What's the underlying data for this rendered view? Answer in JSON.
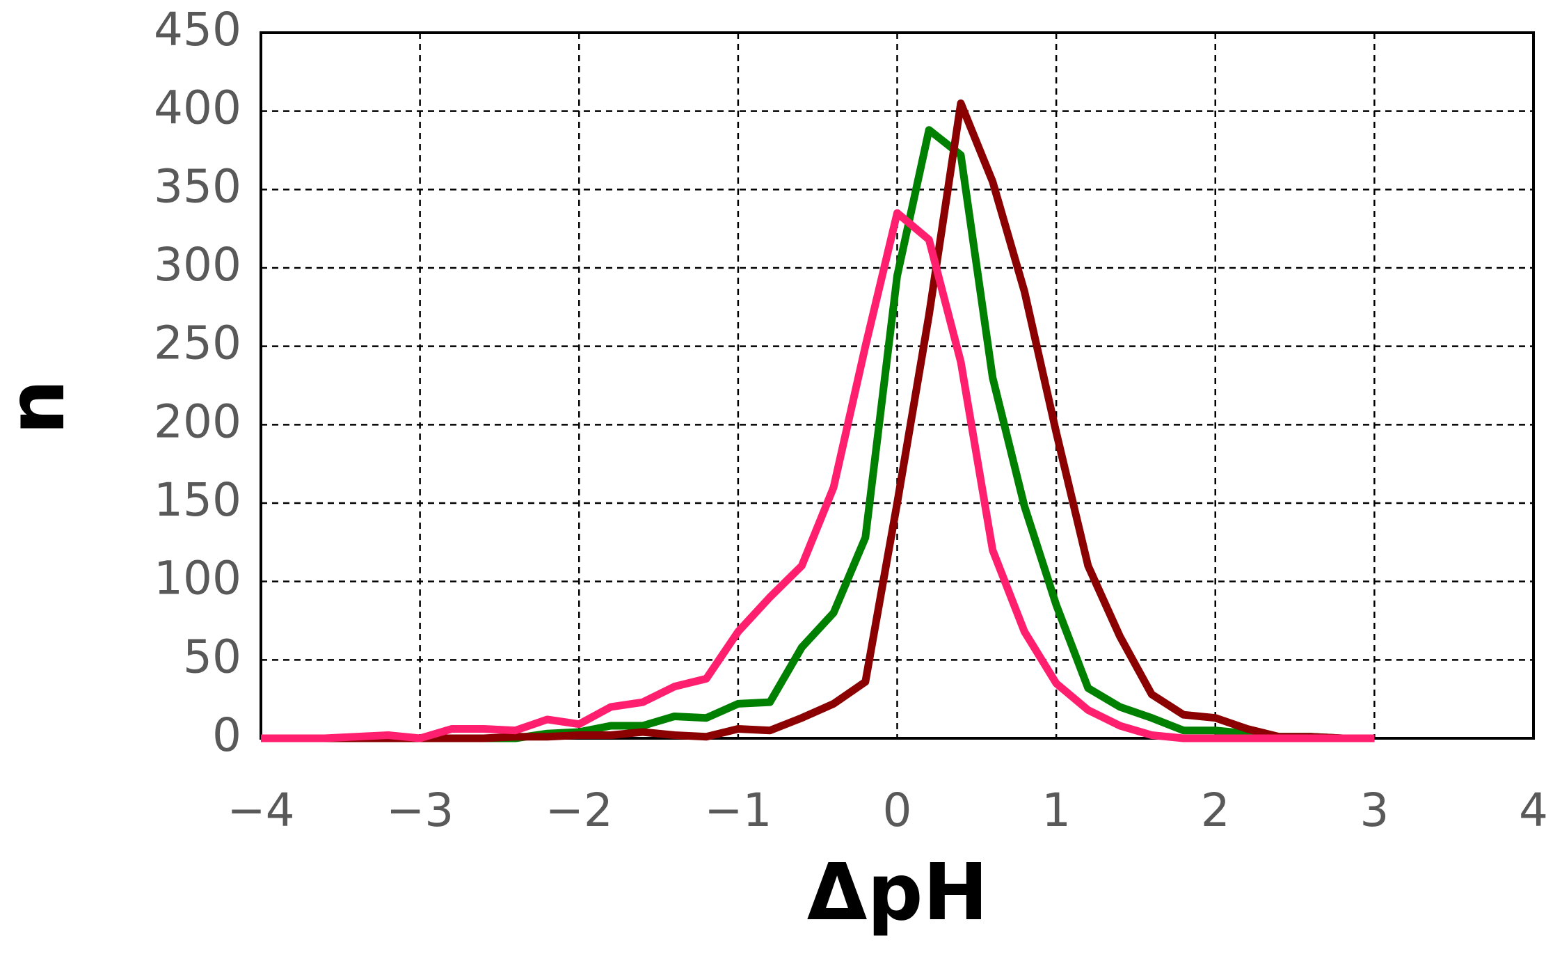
{
  "chart_data": {
    "type": "line",
    "xlabel": "ΔpH",
    "ylabel": "n",
    "x": [
      -4,
      -3.8,
      -3.6,
      -3.4,
      -3.2,
      -3,
      -2.8,
      -2.6,
      -2.4,
      -2.2,
      -2,
      -1.8,
      -1.6,
      -1.4,
      -1.2,
      -1,
      -0.8,
      -0.6,
      -0.4,
      -0.2,
      0,
      0.2,
      0.4,
      0.6,
      0.8,
      1,
      1.2,
      1.4,
      1.6,
      1.8,
      2,
      2.2,
      2.4,
      2.6,
      2.8,
      3
    ],
    "series": [
      {
        "color": "#008000",
        "values": [
          0,
          0,
          0,
          0,
          0,
          0,
          0,
          0,
          0,
          3,
          4,
          8,
          8,
          14,
          13,
          22,
          23,
          58,
          80,
          128,
          295,
          388,
          372,
          230,
          148,
          85,
          32,
          20,
          13,
          5,
          5,
          3,
          1,
          1,
          0,
          0
        ]
      },
      {
        "color": "#8b0000",
        "values": [
          0,
          0,
          0,
          0,
          0,
          0,
          0,
          0,
          1,
          1,
          2,
          2,
          4,
          2,
          1,
          6,
          5,
          13,
          22,
          36,
          150,
          270,
          405,
          355,
          285,
          195,
          110,
          65,
          28,
          15,
          13,
          6,
          1,
          1,
          0,
          0
        ]
      },
      {
        "color": "#ff1f6e",
        "values": [
          0,
          0,
          0,
          1,
          2,
          0,
          6,
          6,
          5,
          12,
          9,
          20,
          23,
          33,
          38,
          68,
          90,
          110,
          160,
          250,
          335,
          318,
          240,
          120,
          68,
          35,
          18,
          8,
          2,
          0,
          0,
          0,
          0,
          0,
          0,
          0
        ]
      }
    ],
    "xlim": [
      -4,
      4
    ],
    "xticks": [
      {
        "value": -4,
        "label": "−4"
      },
      {
        "value": -3,
        "label": "−3"
      },
      {
        "value": -2,
        "label": "−2"
      },
      {
        "value": -1,
        "label": "−1"
      },
      0,
      1,
      2,
      3,
      4
    ],
    "ylim": [
      0,
      450
    ],
    "yticks": [
      0,
      50,
      100,
      150,
      200,
      250,
      300,
      350,
      400,
      450
    ],
    "grid": true
  }
}
